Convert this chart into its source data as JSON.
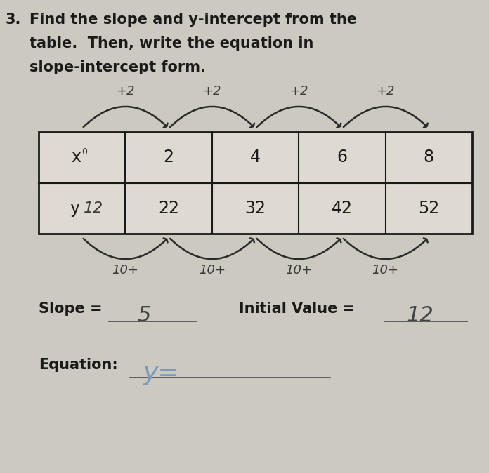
{
  "background_color": "#ccc9c0",
  "title_number": "3.",
  "title_line1": "Find the slope and y-intercept from the",
  "title_line2": "table.  Then, write the equation in",
  "title_line3": "slope-intercept form.",
  "x_header": "x",
  "x_superscript": "0",
  "x_values": [
    "2",
    "4",
    "6",
    "8"
  ],
  "y_header": "y",
  "y_header2": "12",
  "y_values": [
    "22",
    "32",
    "42",
    "52"
  ],
  "above_arrows": [
    "+2",
    "+2",
    "+2",
    "+2"
  ],
  "below_labels": [
    "10+",
    "10+",
    "10+",
    "10+"
  ],
  "slope_label": "Slope = ",
  "slope_value": "5",
  "initial_value_label": "Initial Value = ",
  "initial_value_value": "12",
  "equation_label": "Equation:",
  "equation_value": "y=",
  "font_color": "#1a1a1a",
  "handwriting_color": "#3a3a3a",
  "hw_blue": "#6a8ab0",
  "arrow_color": "#2a2a2a",
  "table_line_color": "#1a1a1a",
  "table_bg": "#dedad2",
  "line_color": "#555555"
}
